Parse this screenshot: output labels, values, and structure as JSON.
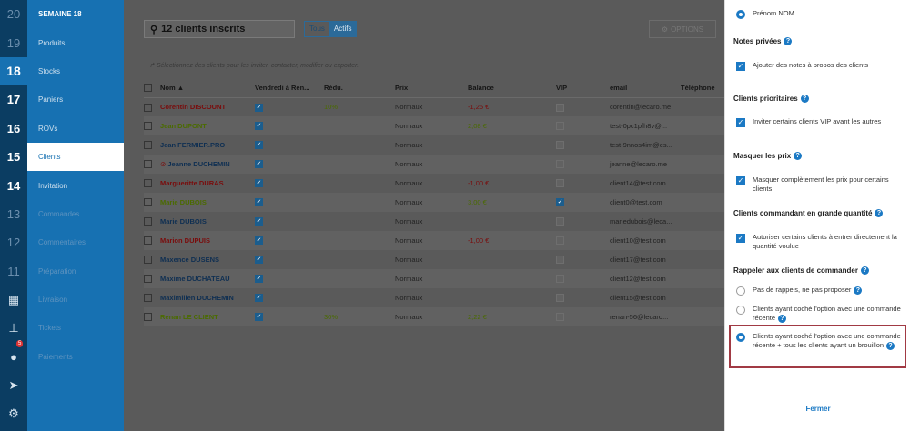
{
  "sidebar": {
    "week_numbers": [
      "20",
      "19",
      "18",
      "17",
      "16",
      "15",
      "14",
      "13",
      "12",
      "11"
    ],
    "week_label": "SEMAINE 18",
    "items": [
      "Produits",
      "Stocks",
      "Paniers",
      "ROVs",
      "Clients",
      "Invitation",
      "Commandes",
      "Commentaires",
      "Préparation",
      "Livraison",
      "Tickets",
      "Paiements"
    ],
    "notification_count": "5"
  },
  "toolbar": {
    "search": "12 clients inscrits",
    "filter_all": "Tous",
    "filter_active": "Actifs",
    "options": "OPTIONS"
  },
  "hint": "Sélectionnez des clients pour les inviter, contacter, modifier ou exporter.",
  "table": {
    "headers": [
      "Nom",
      "Vendredi à Ren...",
      "Rédu.",
      "Prix",
      "Balance",
      "VIP",
      "email",
      "Téléphone"
    ],
    "rows": [
      {
        "name": "Corentin DISCOUNT",
        "color": "red",
        "ven": true,
        "reduc": "10%",
        "prix": "Normaux",
        "balance": "-1,25 €",
        "bal": "neg",
        "vip": false,
        "email": "corentin@lecaro.me"
      },
      {
        "name": "Jean DUPONT",
        "color": "green",
        "ven": true,
        "reduc": "",
        "prix": "Normaux",
        "balance": "2,08 €",
        "bal": "pos",
        "vip": false,
        "email": "test-0pc1pfh8v@..."
      },
      {
        "name": "Jean FERMIER.PRO",
        "color": "blue",
        "ven": true,
        "reduc": "",
        "prix": "Normaux",
        "balance": "",
        "bal": "",
        "vip": false,
        "email": "test-9nnos4im@es..."
      },
      {
        "name": "Jeanne DUCHEMIN",
        "color": "blue",
        "banned": true,
        "ven": true,
        "reduc": "",
        "prix": "Normaux",
        "balance": "",
        "bal": "",
        "vip": false,
        "email": "jeanne@lecaro.me"
      },
      {
        "name": "Margueritte DURAS",
        "color": "red",
        "ven": true,
        "reduc": "",
        "prix": "Normaux",
        "balance": "-1,00 €",
        "bal": "neg",
        "vip": false,
        "email": "client14@test.com"
      },
      {
        "name": "Marie DUBOIS",
        "color": "green",
        "ven": true,
        "reduc": "",
        "prix": "Normaux",
        "balance": "3,00 €",
        "bal": "pos",
        "vip": true,
        "email": "client0@test.com"
      },
      {
        "name": "Marie DUBOIS",
        "color": "blue",
        "ven": true,
        "reduc": "",
        "prix": "Normaux",
        "balance": "",
        "bal": "",
        "vip": false,
        "email": "mariedubois@leca..."
      },
      {
        "name": "Marion DUPUIS",
        "color": "red",
        "ven": true,
        "reduc": "",
        "prix": "Normaux",
        "balance": "-1,00 €",
        "bal": "neg",
        "vip": false,
        "email": "client10@test.com"
      },
      {
        "name": "Maxence DUSENS",
        "color": "blue",
        "ven": true,
        "reduc": "",
        "prix": "Normaux",
        "balance": "",
        "bal": "",
        "vip": false,
        "email": "client17@test.com"
      },
      {
        "name": "Maxime DUCHATEAU",
        "color": "blue",
        "ven": true,
        "reduc": "",
        "prix": "Normaux",
        "balance": "",
        "bal": "",
        "vip": false,
        "email": "client12@test.com"
      },
      {
        "name": "Maximilien DUCHEMIN",
        "color": "blue",
        "ven": true,
        "reduc": "",
        "prix": "Normaux",
        "balance": "",
        "bal": "",
        "vip": false,
        "email": "client15@test.com"
      },
      {
        "name": "Renan LE CLIENT",
        "color": "green",
        "ven": true,
        "reduc": "30%",
        "prix": "Normaux",
        "balance": "2,22 €",
        "bal": "pos",
        "vip": false,
        "email": "renan-56@lecaro..."
      }
    ]
  },
  "panel": {
    "top_option": "Prénom NOM",
    "notes_title": "Notes privées",
    "notes_option": "Ajouter des notes à propos des clients",
    "prio_title": "Clients prioritaires",
    "prio_option": "Inviter certains clients VIP avant les autres",
    "hide_title": "Masquer les prix",
    "hide_option": "Masquer complètement les prix pour certains clients",
    "bulk_title": "Clients commandant en grande quantité",
    "bulk_option": "Autoriser certains clients à entrer directement la quantité voulue",
    "remind_title": "Rappeler aux clients de commander",
    "remind_options": [
      "Pas de rappels, ne pas proposer",
      "Clients ayant coché l'option avec une commande récente",
      "Clients ayant coché l'option avec une commande récente + tous les clients ayant un brouillon"
    ],
    "close": "Fermer"
  },
  "colors": {
    "nav": "#1771b2",
    "weeks": "#0b3d62",
    "accent": "#1b79c4",
    "highlight": "#a13a44"
  }
}
